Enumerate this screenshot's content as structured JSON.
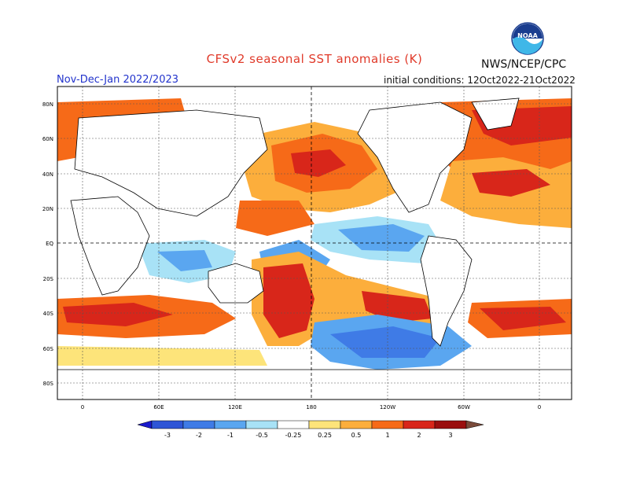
{
  "title": "CFSv2 seasonal SST anomalies (K)",
  "period": "Nov-Dec-Jan 2022/2023",
  "initial_conditions": "initial conditions: 12Oct2022-21Oct2022",
  "agency": "NWS/NCEP/CPC",
  "logo_text": "NOAA",
  "lat_labels": [
    "80N",
    "60N",
    "40N",
    "20N",
    "EQ",
    "20S",
    "40S",
    "60S",
    "80S"
  ],
  "lon_labels": [
    "0",
    "60E",
    "120E",
    "180",
    "120W",
    "60W",
    "0"
  ],
  "colorbar": {
    "ticks": [
      "-3",
      "-2",
      "-1",
      "-0.5",
      "-0.25",
      "0.25",
      "0.5",
      "1",
      "2",
      "3"
    ],
    "colors": [
      "#1a1acc",
      "#2e55d6",
      "#3f7be6",
      "#5aa6f0",
      "#a8e2f6",
      "#ffffff",
      "#fde47a",
      "#fcae3c",
      "#f66a18",
      "#d8261a",
      "#9a0e0e",
      "#7a4a3a"
    ]
  }
}
